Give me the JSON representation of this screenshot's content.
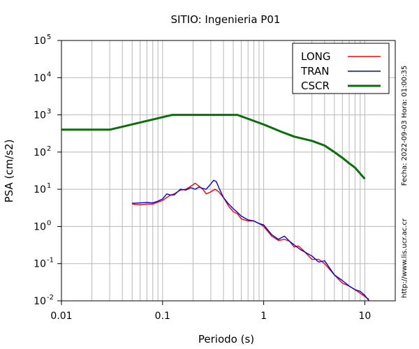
{
  "chart_data": {
    "type": "line",
    "title": "SITIO: Ingenieria P01",
    "xlabel": "Periodo (s)",
    "ylabel": "PSA (cm/s2)",
    "xscale": "log",
    "yscale": "log",
    "xlim": [
      0.01,
      20
    ],
    "ylim": [
      0.01,
      100000
    ],
    "grid": true,
    "legend_position": "top-right",
    "x_tick_labels": [
      "0.01",
      "0.1",
      "1",
      "10"
    ],
    "y_tick_labels": [
      {
        "base": "10",
        "exp": "-2"
      },
      {
        "base": "10",
        "exp": "-1"
      },
      {
        "base": "10",
        "exp": "0"
      },
      {
        "base": "10",
        "exp": "1"
      },
      {
        "base": "10",
        "exp": "2"
      },
      {
        "base": "10",
        "exp": "3"
      },
      {
        "base": "10",
        "exp": "4"
      },
      {
        "base": "10",
        "exp": "5"
      }
    ],
    "side_note_date": "Fecha: 2022-09-03  Hora: 01:00:35",
    "side_note_url": "http://www.lis.ucr.ac.cr",
    "series": [
      {
        "name": "LONG",
        "color": "#ff0000",
        "x": [
          0.05,
          0.06,
          0.07,
          0.08,
          0.09,
          0.1,
          0.11,
          0.12,
          0.13,
          0.15,
          0.17,
          0.19,
          0.21,
          0.23,
          0.25,
          0.27,
          0.3,
          0.33,
          0.36,
          0.4,
          0.45,
          0.5,
          0.55,
          0.6,
          0.7,
          0.8,
          0.9,
          1.0,
          1.2,
          1.4,
          1.6,
          1.8,
          2.0,
          2.2,
          2.5,
          3.0,
          3.5,
          4.0,
          5.0,
          6.0,
          7.0,
          8.0,
          9.0,
          10.0,
          11.0
        ],
        "y": [
          4.0,
          3.8,
          4.0,
          4.0,
          4.5,
          5.0,
          6.0,
          7.0,
          7.5,
          9.5,
          10.0,
          12.0,
          14.5,
          12.0,
          10.0,
          7.5,
          8.5,
          10.0,
          8.5,
          6.0,
          3.5,
          2.5,
          2.2,
          1.6,
          1.4,
          1.4,
          1.2,
          1.0,
          0.55,
          0.42,
          0.45,
          0.4,
          0.28,
          0.3,
          0.22,
          0.13,
          0.13,
          0.1,
          0.05,
          0.03,
          0.025,
          0.02,
          0.016,
          0.013,
          0.011
        ]
      },
      {
        "name": "TRAN",
        "color": "#0000dd",
        "x": [
          0.05,
          0.06,
          0.07,
          0.08,
          0.09,
          0.1,
          0.11,
          0.12,
          0.13,
          0.15,
          0.17,
          0.19,
          0.21,
          0.23,
          0.25,
          0.27,
          0.3,
          0.32,
          0.34,
          0.36,
          0.4,
          0.45,
          0.5,
          0.55,
          0.6,
          0.7,
          0.8,
          0.9,
          1.0,
          1.2,
          1.4,
          1.6,
          1.8,
          2.0,
          2.3,
          2.6,
          3.0,
          3.5,
          4.0,
          5.0,
          6.0,
          7.0,
          8.0,
          9.0,
          10.0,
          11.0
        ],
        "y": [
          4.2,
          4.3,
          4.4,
          4.3,
          4.8,
          5.5,
          7.5,
          7.0,
          7.0,
          10.0,
          9.5,
          11.0,
          10.0,
          11.5,
          10.5,
          10.0,
          14.0,
          17.5,
          16.0,
          11.0,
          6.0,
          4.0,
          3.0,
          2.4,
          1.9,
          1.5,
          1.4,
          1.2,
          1.1,
          0.6,
          0.45,
          0.55,
          0.4,
          0.32,
          0.24,
          0.2,
          0.16,
          0.11,
          0.12,
          0.05,
          0.035,
          0.025,
          0.02,
          0.018,
          0.014,
          0.01
        ]
      },
      {
        "name": "CSCR",
        "color": "#0a6e0a",
        "x": [
          0.01,
          0.03,
          0.125,
          0.55,
          1.0,
          1.5,
          2.0,
          3.0,
          4.0,
          5.0,
          6.0,
          7.0,
          8.0,
          10.0
        ],
        "y": [
          400,
          400,
          1000,
          1000,
          550,
          350,
          260,
          200,
          150,
          100,
          70,
          50,
          38,
          19
        ]
      }
    ]
  }
}
